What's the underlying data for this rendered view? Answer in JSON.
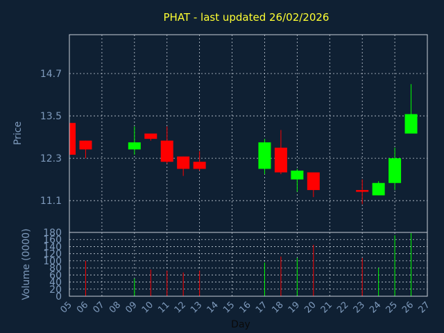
{
  "chart_data": {
    "type": "candlestick",
    "title": "PHAT - last updated 26/02/2026",
    "ylabel": "Price",
    "volume_label": "Volume (0000)",
    "xlabel": "Day",
    "ylim": [
      10.2,
      15.8
    ],
    "yticks": [
      "14.7",
      "13.5",
      "12.3",
      "11.1"
    ],
    "volume_ylim": [
      0,
      180
    ],
    "volume_ticks": [
      "180",
      "160",
      "140",
      "120",
      "100",
      "80",
      "60",
      "40",
      "20",
      "0"
    ],
    "x_ticks": [
      "05",
      "06",
      "07",
      "08",
      "09",
      "10",
      "11",
      "12",
      "13",
      "14",
      "15",
      "16",
      "17",
      "18",
      "19",
      "20",
      "21",
      "22",
      "23",
      "24",
      "25",
      "26",
      "27"
    ],
    "grid": true,
    "up_color": "#00ff00",
    "down_color": "#ff0000",
    "candles": [
      {
        "day": "05",
        "open": 13.3,
        "high": 13.3,
        "low": 12.4,
        "close": 12.4,
        "volume": 0
      },
      {
        "day": "06",
        "open": 12.8,
        "high": 12.8,
        "low": 12.3,
        "close": 12.55,
        "volume": 100
      },
      {
        "day": "09",
        "open": 12.55,
        "high": 13.2,
        "low": 12.4,
        "close": 12.75,
        "volume": 50
      },
      {
        "day": "10",
        "open": 13.0,
        "high": 13.0,
        "low": 12.8,
        "close": 12.85,
        "volume": 75
      },
      {
        "day": "11",
        "open": 12.8,
        "high": 13.2,
        "low": 12.15,
        "close": 12.2,
        "volume": 72
      },
      {
        "day": "12",
        "open": 12.35,
        "high": 12.35,
        "low": 11.8,
        "close": 12.0,
        "volume": 67
      },
      {
        "day": "13",
        "open": 12.2,
        "high": 12.5,
        "low": 11.95,
        "close": 12.0,
        "volume": 72
      },
      {
        "day": "17",
        "open": 12.0,
        "high": 12.85,
        "low": 11.85,
        "close": 12.75,
        "volume": 95
      },
      {
        "day": "18",
        "open": 12.6,
        "high": 13.1,
        "low": 11.85,
        "close": 11.9,
        "volume": 112
      },
      {
        "day": "19",
        "open": 11.7,
        "high": 12.0,
        "low": 11.35,
        "close": 11.95,
        "volume": 108
      },
      {
        "day": "20",
        "open": 11.9,
        "high": 11.9,
        "low": 11.2,
        "close": 11.4,
        "volume": 145
      },
      {
        "day": "23",
        "open": 11.4,
        "high": 11.7,
        "low": 11.0,
        "close": 11.35,
        "volume": 108
      },
      {
        "day": "24",
        "open": 11.25,
        "high": 11.65,
        "low": 11.25,
        "close": 11.6,
        "volume": 80
      },
      {
        "day": "25",
        "open": 11.6,
        "high": 12.6,
        "low": 11.4,
        "close": 12.3,
        "volume": 172
      },
      {
        "day": "26",
        "open": 13.0,
        "high": 14.4,
        "low": 13.0,
        "close": 13.55,
        "volume": 178
      }
    ]
  }
}
